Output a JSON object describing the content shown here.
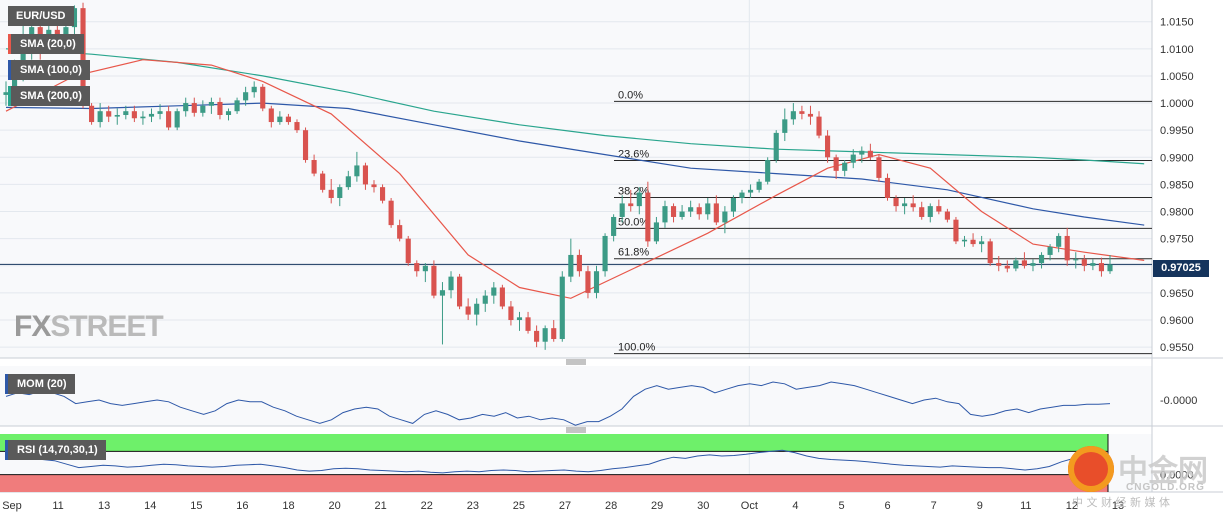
{
  "colors": {
    "up": "#3c9b86",
    "down": "#d9534f",
    "sma20": "#e8574a",
    "sma100": "#2e58a8",
    "sma200": "#2aa58e",
    "mom": "#2e58a8",
    "rsi": "#2e58a8",
    "rsi_overbought": "#6ef06a",
    "rsi_oversold": "#f07c7c",
    "grid": "#e3e8ee",
    "panel_bg": "#f8f9fb",
    "axis_text": "#333333",
    "legend_bg": "#5a5a5a",
    "current_price_bg": "#15345c",
    "logo": "#b4b4b4"
  },
  "brand": {
    "logo_fx": "FX",
    "logo_street": "STREET",
    "watermark_cn": "中金网",
    "watermark_url": "CNGOLD.ORG",
    "watermark_sub": "中 文 财 经 新 媒 体",
    "watermark_icon": "coin-dollar-icon"
  },
  "legend": {
    "symbol": "EUR/USD",
    "sma20": "SMA (20,0)",
    "sma100": "SMA (100,0)",
    "sma200": "SMA (200,0)",
    "mom": "MOM (20)",
    "rsi": "RSI (14,70,30,1)"
  },
  "current_price": "0.97025",
  "price_ticks": [
    "1.0150",
    "1.0100",
    "1.0050",
    "1.0000",
    "0.9950",
    "0.9900",
    "0.9850",
    "0.9800",
    "0.9750",
    "0.9700",
    "0.9650",
    "0.9600",
    "0.9550"
  ],
  "mom_tick": "-0.0000",
  "rsi_tick": "0.0000",
  "date_labels": [
    "Sep",
    "11",
    "13",
    "14",
    "15",
    "16",
    "18",
    "20",
    "21",
    "22",
    "23",
    "25",
    "27",
    "28",
    "29",
    "30",
    "Oct",
    "4",
    "5",
    "6",
    "7",
    "9",
    "11",
    "12",
    "13"
  ],
  "fib_labels": [
    "0.0%",
    "23.6%",
    "38.2%",
    "50.0%",
    "61.8%",
    "100.0%"
  ],
  "chart_data": {
    "type": "candlestick",
    "symbol": "EUR/USD",
    "price_axis": {
      "ylim": [
        0.953,
        1.019
      ],
      "ticks": [
        1.015,
        1.01,
        1.005,
        1.0,
        0.995,
        0.99,
        0.985,
        0.98,
        0.975,
        0.97,
        0.965,
        0.96,
        0.955
      ]
    },
    "candles": [
      [
        1.0015,
        1.004,
        0.9995,
        1.002
      ],
      [
        1.002,
        1.008,
        1.001,
        1.006
      ],
      [
        1.006,
        1.015,
        1.004,
        1.012
      ],
      [
        1.012,
        1.017,
        1.008,
        1.014
      ],
      [
        1.014,
        1.016,
        1.008,
        1.011
      ],
      [
        1.011,
        1.015,
        1.0095,
        1.0135
      ],
      [
        1.0135,
        1.0145,
        1.01,
        1.0115
      ],
      [
        1.0115,
        1.015,
        1.0105,
        1.014
      ],
      [
        1.014,
        1.018,
        1.012,
        1.0175
      ],
      [
        1.0175,
        1.0185,
        0.999,
        0.9995
      ],
      [
        0.9995,
        1.0,
        0.996,
        0.9965
      ],
      [
        0.9965,
        1.0,
        0.9955,
        0.9985
      ],
      [
        0.9985,
        0.9995,
        0.9965,
        0.9975
      ],
      [
        0.9975,
        0.999,
        0.996,
        0.9978
      ],
      [
        0.9978,
        0.9995,
        0.997,
        0.9985
      ],
      [
        0.9985,
        0.9995,
        0.9965,
        0.9972
      ],
      [
        0.9972,
        0.9985,
        0.996,
        0.9975
      ],
      [
        0.9975,
        0.999,
        0.9965,
        0.998
      ],
      [
        0.998,
        0.9998,
        0.997,
        0.9985
      ],
      [
        0.9985,
        0.9995,
        0.995,
        0.9955
      ],
      [
        0.9955,
        0.999,
        0.995,
        0.9985
      ],
      [
        0.9985,
        1.001,
        0.9975,
        1.0
      ],
      [
        1.0,
        1.001,
        0.9975,
        0.9982
      ],
      [
        0.9982,
        1.0005,
        0.9975,
        0.9995
      ],
      [
        0.9995,
        1.001,
        0.998,
        1.0002
      ],
      [
        1.0002,
        1.001,
        0.997,
        0.9978
      ],
      [
        0.9978,
        0.999,
        0.9968,
        0.9985
      ],
      [
        0.9985,
        1.001,
        0.998,
        1.0005
      ],
      [
        1.0005,
        1.003,
        0.9995,
        1.002
      ],
      [
        1.002,
        1.004,
        1.001,
        1.003
      ],
      [
        1.003,
        1.0035,
        0.9985,
        0.999
      ],
      [
        0.999,
        0.9995,
        0.9955,
        0.9965
      ],
      [
        0.9965,
        0.9985,
        0.996,
        0.9975
      ],
      [
        0.9975,
        0.998,
        0.996,
        0.9965
      ],
      [
        0.9965,
        0.997,
        0.9945,
        0.995
      ],
      [
        0.995,
        0.9955,
        0.989,
        0.9895
      ],
      [
        0.9895,
        0.9905,
        0.9865,
        0.987
      ],
      [
        0.987,
        0.9875,
        0.9835,
        0.984
      ],
      [
        0.984,
        0.986,
        0.9815,
        0.9825
      ],
      [
        0.9825,
        0.985,
        0.981,
        0.9845
      ],
      [
        0.9845,
        0.9875,
        0.984,
        0.9865
      ],
      [
        0.9865,
        0.991,
        0.9855,
        0.9885
      ],
      [
        0.9885,
        0.989,
        0.984,
        0.985
      ],
      [
        0.985,
        0.9858,
        0.9835,
        0.9845
      ],
      [
        0.9845,
        0.985,
        0.9815,
        0.982
      ],
      [
        0.982,
        0.9825,
        0.977,
        0.9775
      ],
      [
        0.9775,
        0.9785,
        0.9745,
        0.975
      ],
      [
        0.975,
        0.9755,
        0.97,
        0.9705
      ],
      [
        0.9705,
        0.971,
        0.968,
        0.969
      ],
      [
        0.969,
        0.9705,
        0.967,
        0.97
      ],
      [
        0.97,
        0.971,
        0.964,
        0.9645
      ],
      [
        0.9645,
        0.967,
        0.9555,
        0.9655
      ],
      [
        0.9655,
        0.969,
        0.964,
        0.968
      ],
      [
        0.968,
        0.9685,
        0.962,
        0.9625
      ],
      [
        0.9625,
        0.964,
        0.96,
        0.961
      ],
      [
        0.961,
        0.964,
        0.959,
        0.963
      ],
      [
        0.963,
        0.9655,
        0.9615,
        0.9645
      ],
      [
        0.9645,
        0.967,
        0.963,
        0.966
      ],
      [
        0.966,
        0.9665,
        0.962,
        0.9625
      ],
      [
        0.9625,
        0.9635,
        0.959,
        0.96
      ],
      [
        0.96,
        0.9615,
        0.958,
        0.9605
      ],
      [
        0.9605,
        0.9615,
        0.9575,
        0.958
      ],
      [
        0.958,
        0.959,
        0.955,
        0.956
      ],
      [
        0.956,
        0.959,
        0.9545,
        0.9585
      ],
      [
        0.9585,
        0.96,
        0.956,
        0.9565
      ],
      [
        0.9565,
        0.969,
        0.956,
        0.968
      ],
      [
        0.968,
        0.975,
        0.967,
        0.972
      ],
      [
        0.972,
        0.973,
        0.968,
        0.969
      ],
      [
        0.969,
        0.97,
        0.964,
        0.965
      ],
      [
        0.965,
        0.97,
        0.964,
        0.969
      ],
      [
        0.969,
        0.976,
        0.968,
        0.9755
      ],
      [
        0.9755,
        0.9795,
        0.9745,
        0.979
      ],
      [
        0.979,
        0.983,
        0.978,
        0.9815
      ],
      [
        0.9815,
        0.984,
        0.98,
        0.981
      ],
      [
        0.981,
        0.9845,
        0.9795,
        0.9835
      ],
      [
        0.9835,
        0.9855,
        0.9735,
        0.9745
      ],
      [
        0.9745,
        0.979,
        0.974,
        0.978
      ],
      [
        0.978,
        0.982,
        0.977,
        0.981
      ],
      [
        0.981,
        0.9815,
        0.978,
        0.979
      ],
      [
        0.979,
        0.9812,
        0.9785,
        0.98
      ],
      [
        0.98,
        0.982,
        0.979,
        0.9808
      ],
      [
        0.9808,
        0.9815,
        0.9785,
        0.9795
      ],
      [
        0.9795,
        0.9825,
        0.9785,
        0.9815
      ],
      [
        0.9815,
        0.983,
        0.9775,
        0.978
      ],
      [
        0.978,
        0.981,
        0.976,
        0.98
      ],
      [
        0.98,
        0.983,
        0.979,
        0.9825
      ],
      [
        0.9825,
        0.984,
        0.9815,
        0.9835
      ],
      [
        0.9835,
        0.985,
        0.9825,
        0.984
      ],
      [
        0.984,
        0.986,
        0.9835,
        0.9855
      ],
      [
        0.9855,
        0.99,
        0.985,
        0.9895
      ],
      [
        0.9895,
        0.995,
        0.989,
        0.9945
      ],
      [
        0.9945,
        0.999,
        0.993,
        0.997
      ],
      [
        0.997,
        1.0,
        0.996,
        0.9985
      ],
      [
        0.9985,
        0.9995,
        0.997,
        0.998
      ],
      [
        0.998,
        0.9995,
        0.996,
        0.9975
      ],
      [
        0.9975,
        0.9985,
        0.9935,
        0.994
      ],
      [
        0.994,
        0.995,
        0.989,
        0.99
      ],
      [
        0.99,
        0.9905,
        0.986,
        0.9875
      ],
      [
        0.9875,
        0.9895,
        0.9865,
        0.989
      ],
      [
        0.989,
        0.9915,
        0.988,
        0.9905
      ],
      [
        0.9905,
        0.992,
        0.989,
        0.9912
      ],
      [
        0.9912,
        0.9925,
        0.9895,
        0.99
      ],
      [
        0.99,
        0.9905,
        0.9855,
        0.9862
      ],
      [
        0.9862,
        0.987,
        0.982,
        0.9825
      ],
      [
        0.9825,
        0.983,
        0.98,
        0.981
      ],
      [
        0.981,
        0.9825,
        0.9795,
        0.9815
      ],
      [
        0.9815,
        0.983,
        0.98,
        0.9808
      ],
      [
        0.9808,
        0.9818,
        0.9785,
        0.979
      ],
      [
        0.979,
        0.9815,
        0.978,
        0.981
      ],
      [
        0.981,
        0.9822,
        0.9795,
        0.98
      ],
      [
        0.98,
        0.9805,
        0.978,
        0.9785
      ],
      [
        0.9785,
        0.979,
        0.974,
        0.9745
      ],
      [
        0.9745,
        0.9755,
        0.9735,
        0.9748
      ],
      [
        0.9748,
        0.976,
        0.9735,
        0.974
      ],
      [
        0.974,
        0.9755,
        0.9725,
        0.9745
      ],
      [
        0.9745,
        0.975,
        0.97,
        0.9705
      ],
      [
        0.9705,
        0.9718,
        0.969,
        0.97
      ],
      [
        0.97,
        0.971,
        0.9688,
        0.9695
      ],
      [
        0.9695,
        0.9715,
        0.969,
        0.971
      ],
      [
        0.971,
        0.9725,
        0.9695,
        0.97
      ],
      [
        0.97,
        0.9712,
        0.969,
        0.9705
      ],
      [
        0.9705,
        0.9725,
        0.9695,
        0.972
      ],
      [
        0.972,
        0.974,
        0.971,
        0.9735
      ],
      [
        0.9735,
        0.976,
        0.9725,
        0.9755
      ],
      [
        0.9755,
        0.977,
        0.97,
        0.971
      ],
      [
        0.971,
        0.9725,
        0.9695,
        0.9712
      ],
      [
        0.9712,
        0.972,
        0.969,
        0.97
      ],
      [
        0.97,
        0.9712,
        0.9692,
        0.9705
      ],
      [
        0.9705,
        0.9715,
        0.968,
        0.969
      ],
      [
        0.969,
        0.972,
        0.9685,
        0.97025
      ]
    ],
    "fibonacci": {
      "levels": [
        {
          "label": "0.0%",
          "price": 1.0003
        },
        {
          "label": "23.6%",
          "price": 0.9894
        },
        {
          "label": "38.2%",
          "price": 0.9826
        },
        {
          "label": "50.0%",
          "price": 0.9769
        },
        {
          "label": "61.8%",
          "price": 0.9713
        },
        {
          "label": "100.0%",
          "price": 0.9538
        }
      ]
    },
    "sma": {
      "sma20": [
        [
          0,
          0.9985
        ],
        [
          8,
          1.005
        ],
        [
          16,
          1.008
        ],
        [
          24,
          1.007
        ],
        [
          30,
          1.004
        ],
        [
          38,
          0.998
        ],
        [
          46,
          0.987
        ],
        [
          54,
          0.972
        ],
        [
          60,
          0.966
        ],
        [
          66,
          0.964
        ],
        [
          74,
          0.97
        ],
        [
          82,
          0.976
        ],
        [
          90,
          0.983
        ],
        [
          96,
          0.988
        ],
        [
          102,
          0.9905
        ],
        [
          108,
          0.988
        ],
        [
          114,
          0.98
        ],
        [
          120,
          0.974
        ],
        [
          126,
          0.9725
        ],
        [
          133,
          0.971
        ]
      ],
      "sma100": [
        [
          0,
          0.9992
        ],
        [
          10,
          0.999
        ],
        [
          20,
          0.9995
        ],
        [
          30,
          1.0
        ],
        [
          40,
          0.999
        ],
        [
          50,
          0.996
        ],
        [
          60,
          0.993
        ],
        [
          70,
          0.9905
        ],
        [
          80,
          0.988
        ],
        [
          90,
          0.987
        ],
        [
          100,
          0.986
        ],
        [
          110,
          0.984
        ],
        [
          120,
          0.9805
        ],
        [
          126,
          0.979
        ],
        [
          133,
          0.9775
        ]
      ],
      "sma200": [
        [
          0,
          1.01
        ],
        [
          10,
          1.009
        ],
        [
          20,
          1.0075
        ],
        [
          30,
          1.005
        ],
        [
          40,
          1.002
        ],
        [
          50,
          0.9985
        ],
        [
          60,
          0.996
        ],
        [
          70,
          0.994
        ],
        [
          80,
          0.9925
        ],
        [
          90,
          0.9915
        ],
        [
          100,
          0.991
        ],
        [
          110,
          0.9905
        ],
        [
          120,
          0.99
        ],
        [
          126,
          0.9895
        ],
        [
          133,
          0.9888
        ]
      ]
    },
    "mom": [
      0.1,
      0.2,
      0.15,
      0.25,
      0.2,
      0.1,
      -0.1,
      -0.05,
      0.0,
      -0.1,
      -0.15,
      -0.1,
      -0.05,
      0.0,
      -0.05,
      -0.2,
      -0.3,
      -0.4,
      -0.3,
      -0.1,
      0.0,
      -0.05,
      -0.05,
      -0.2,
      -0.3,
      -0.45,
      -0.55,
      -0.65,
      -0.55,
      -0.35,
      -0.25,
      -0.2,
      -0.25,
      -0.45,
      -0.55,
      -0.65,
      -0.4,
      -0.3,
      -0.4,
      -0.55,
      -0.5,
      -0.4,
      -0.45,
      -0.35,
      -0.5,
      -0.45,
      -0.55,
      -0.5,
      -0.55,
      -0.7,
      -0.6,
      -0.6,
      -0.45,
      -0.25,
      0.1,
      0.3,
      0.4,
      0.3,
      0.35,
      0.4,
      0.35,
      0.2,
      0.3,
      0.4,
      0.45,
      0.4,
      0.5,
      0.45,
      0.3,
      0.35,
      0.4,
      0.5,
      0.45,
      0.4,
      0.3,
      0.2,
      0.1,
      0.0,
      -0.1,
      0.0,
      0.05,
      -0.05,
      -0.1,
      -0.4,
      -0.45,
      -0.4,
      -0.3,
      -0.25,
      -0.35,
      -0.25,
      -0.2,
      -0.15,
      -0.15,
      -0.12,
      -0.12,
      -0.1
    ],
    "rsi": {
      "overbought": 70,
      "oversold": 30,
      "values": [
        60,
        62,
        58,
        56,
        54,
        48,
        42,
        44,
        46,
        45,
        43,
        44,
        46,
        48,
        47,
        45,
        44,
        43,
        44,
        46,
        47,
        48,
        45,
        42,
        38,
        36,
        37,
        40,
        41,
        40,
        38,
        37,
        36,
        35,
        36,
        34,
        33,
        35,
        36,
        35,
        37,
        38,
        37,
        35,
        36,
        37,
        38,
        36,
        35,
        37,
        40,
        42,
        45,
        48,
        55,
        60,
        58,
        62,
        64,
        62,
        63,
        65,
        68,
        70,
        72,
        68,
        62,
        58,
        56,
        55,
        54,
        52,
        50,
        48,
        46,
        45,
        44,
        43,
        45,
        44,
        43,
        42,
        42,
        40,
        38,
        40,
        44,
        52,
        58,
        56,
        54,
        55
      ]
    },
    "x_labels": [
      "Sep",
      "11",
      "13",
      "14",
      "15",
      "16",
      "18",
      "20",
      "21",
      "22",
      "23",
      "25",
      "27",
      "28",
      "29",
      "30",
      "Oct",
      "4",
      "5",
      "6",
      "7",
      "9",
      "11",
      "12",
      "13"
    ]
  }
}
